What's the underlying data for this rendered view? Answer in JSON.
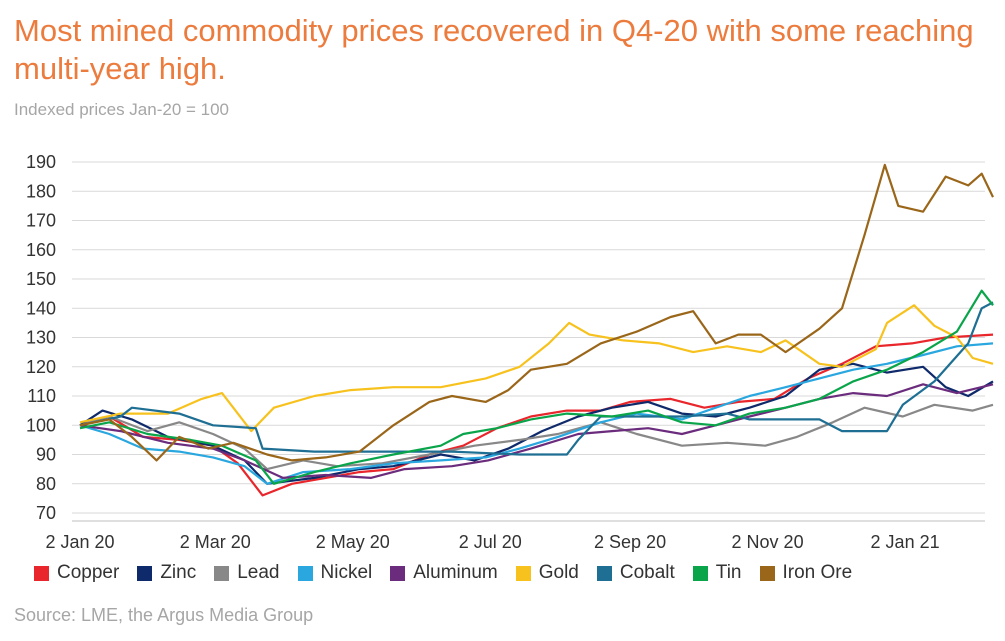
{
  "title": "Most mined commodity prices recovered in Q4-20 with some reaching multi-year high.",
  "subtitle": "Indexed prices Jan-20 = 100",
  "source": "Source: LME, the Argus Media Group",
  "chart_data": {
    "type": "line",
    "title": "Most mined commodity prices recovered in Q4-20 with some reaching multi-year high.",
    "subtitle": "Indexed prices Jan-20 = 100",
    "ylim": [
      70,
      190
    ],
    "yticks": [
      70,
      80,
      90,
      100,
      110,
      120,
      130,
      140,
      150,
      160,
      170,
      180,
      190
    ],
    "xlim": [
      "2020-01-02",
      "2021-02-10"
    ],
    "xticks": [
      "2020-01-02",
      "2020-03-02",
      "2020-05-02",
      "2020-07-02",
      "2020-09-02",
      "2020-11-02",
      "2021-01-02"
    ],
    "xtick_labels": [
      "2 Jan 20",
      "2 Mar 20",
      "2 May 20",
      "2 Jul 20",
      "2 Sep 20",
      "2 Nov 20",
      "2 Jan 21"
    ],
    "grid": "horizontal",
    "legend_position": "bottom",
    "series": [
      {
        "name": "Copper",
        "color": "#e8262b",
        "points": [
          [
            "2020-01-02",
            100
          ],
          [
            "2020-01-15",
            103
          ],
          [
            "2020-01-30",
            96
          ],
          [
            "2020-02-15",
            95
          ],
          [
            "2020-03-01",
            93
          ],
          [
            "2020-03-12",
            87
          ],
          [
            "2020-03-23",
            76
          ],
          [
            "2020-04-05",
            80
          ],
          [
            "2020-04-20",
            82
          ],
          [
            "2020-05-05",
            84
          ],
          [
            "2020-05-20",
            85
          ],
          [
            "2020-06-05",
            90
          ],
          [
            "2020-06-20",
            93
          ],
          [
            "2020-07-05",
            99
          ],
          [
            "2020-07-20",
            103
          ],
          [
            "2020-08-05",
            105
          ],
          [
            "2020-08-20",
            105
          ],
          [
            "2020-09-02",
            108
          ],
          [
            "2020-09-20",
            109
          ],
          [
            "2020-10-05",
            106
          ],
          [
            "2020-10-20",
            108
          ],
          [
            "2020-11-05",
            109
          ],
          [
            "2020-11-20",
            116
          ],
          [
            "2020-12-05",
            121
          ],
          [
            "2020-12-20",
            127
          ],
          [
            "2021-01-05",
            128
          ],
          [
            "2021-01-20",
            130
          ],
          [
            "2021-02-10",
            131
          ]
        ]
      },
      {
        "name": "Zinc",
        "color": "#0f2a6b",
        "points": [
          [
            "2020-01-02",
            100
          ],
          [
            "2020-01-12",
            105
          ],
          [
            "2020-01-25",
            102
          ],
          [
            "2020-02-10",
            96
          ],
          [
            "2020-03-01",
            93
          ],
          [
            "2020-03-15",
            88
          ],
          [
            "2020-03-25",
            80
          ],
          [
            "2020-04-15",
            82
          ],
          [
            "2020-05-05",
            85
          ],
          [
            "2020-05-20",
            86
          ],
          [
            "2020-06-10",
            90
          ],
          [
            "2020-06-25",
            88
          ],
          [
            "2020-07-10",
            92
          ],
          [
            "2020-07-25",
            98
          ],
          [
            "2020-08-10",
            103
          ],
          [
            "2020-08-25",
            106
          ],
          [
            "2020-09-10",
            108
          ],
          [
            "2020-09-25",
            104
          ],
          [
            "2020-10-10",
            103
          ],
          [
            "2020-10-25",
            106
          ],
          [
            "2020-11-10",
            110
          ],
          [
            "2020-11-25",
            119
          ],
          [
            "2020-12-10",
            121
          ],
          [
            "2020-12-25",
            118
          ],
          [
            "2021-01-10",
            120
          ],
          [
            "2021-01-20",
            113
          ],
          [
            "2021-01-30",
            110
          ],
          [
            "2021-02-10",
            115
          ]
        ]
      },
      {
        "name": "Lead",
        "color": "#888888",
        "points": [
          [
            "2020-01-02",
            100
          ],
          [
            "2020-01-15",
            103
          ],
          [
            "2020-02-01",
            98
          ],
          [
            "2020-02-15",
            101
          ],
          [
            "2020-03-01",
            97
          ],
          [
            "2020-03-15",
            92
          ],
          [
            "2020-03-25",
            85
          ],
          [
            "2020-04-10",
            88
          ],
          [
            "2020-04-25",
            86
          ],
          [
            "2020-05-15",
            87
          ],
          [
            "2020-06-05",
            90
          ],
          [
            "2020-06-25",
            93
          ],
          [
            "2020-07-15",
            95
          ],
          [
            "2020-08-01",
            97
          ],
          [
            "2020-08-20",
            101
          ],
          [
            "2020-09-05",
            97
          ],
          [
            "2020-09-25",
            93
          ],
          [
            "2020-10-15",
            94
          ],
          [
            "2020-11-01",
            93
          ],
          [
            "2020-11-15",
            96
          ],
          [
            "2020-12-01",
            101
          ],
          [
            "2020-12-15",
            106
          ],
          [
            "2021-01-01",
            103
          ],
          [
            "2021-01-15",
            107
          ],
          [
            "2021-02-01",
            105
          ],
          [
            "2021-02-10",
            107
          ]
        ]
      },
      {
        "name": "Nickel",
        "color": "#2aa7df",
        "points": [
          [
            "2020-01-02",
            100
          ],
          [
            "2020-01-15",
            97
          ],
          [
            "2020-01-30",
            92
          ],
          [
            "2020-02-15",
            91
          ],
          [
            "2020-03-01",
            89
          ],
          [
            "2020-03-15",
            86
          ],
          [
            "2020-03-25",
            80
          ],
          [
            "2020-04-10",
            84
          ],
          [
            "2020-05-01",
            85
          ],
          [
            "2020-05-20",
            87
          ],
          [
            "2020-06-10",
            88
          ],
          [
            "2020-06-30",
            89
          ],
          [
            "2020-07-15",
            92
          ],
          [
            "2020-08-01",
            96
          ],
          [
            "2020-08-20",
            101
          ],
          [
            "2020-09-05",
            104
          ],
          [
            "2020-09-25",
            102
          ],
          [
            "2020-10-10",
            106
          ],
          [
            "2020-10-25",
            110
          ],
          [
            "2020-11-10",
            113
          ],
          [
            "2020-11-25",
            116
          ],
          [
            "2020-12-10",
            119
          ],
          [
            "2020-12-25",
            121
          ],
          [
            "2021-01-10",
            124
          ],
          [
            "2021-01-25",
            127
          ],
          [
            "2021-02-10",
            128
          ]
        ]
      },
      {
        "name": "Aluminum",
        "color": "#6b2c7d",
        "points": [
          [
            "2020-01-02",
            100
          ],
          [
            "2020-01-20",
            98
          ],
          [
            "2020-02-10",
            94
          ],
          [
            "2020-03-01",
            92
          ],
          [
            "2020-03-15",
            88
          ],
          [
            "2020-04-01",
            82
          ],
          [
            "2020-04-20",
            83
          ],
          [
            "2020-05-10",
            82
          ],
          [
            "2020-05-25",
            85
          ],
          [
            "2020-06-15",
            86
          ],
          [
            "2020-07-01",
            88
          ],
          [
            "2020-07-20",
            92
          ],
          [
            "2020-08-10",
            97
          ],
          [
            "2020-08-25",
            98
          ],
          [
            "2020-09-10",
            99
          ],
          [
            "2020-09-25",
            97
          ],
          [
            "2020-10-10",
            100
          ],
          [
            "2020-10-25",
            103
          ],
          [
            "2020-11-10",
            106
          ],
          [
            "2020-11-25",
            109
          ],
          [
            "2020-12-10",
            111
          ],
          [
            "2020-12-25",
            110
          ],
          [
            "2021-01-10",
            114
          ],
          [
            "2021-01-25",
            111
          ],
          [
            "2021-02-10",
            114
          ]
        ]
      },
      {
        "name": "Gold",
        "color": "#f7c21e",
        "points": [
          [
            "2020-01-02",
            101
          ],
          [
            "2020-01-20",
            104
          ],
          [
            "2020-02-10",
            104
          ],
          [
            "2020-02-25",
            109
          ],
          [
            "2020-03-05",
            111
          ],
          [
            "2020-03-18",
            98
          ],
          [
            "2020-03-28",
            106
          ],
          [
            "2020-04-15",
            110
          ],
          [
            "2020-05-01",
            112
          ],
          [
            "2020-05-20",
            113
          ],
          [
            "2020-06-10",
            113
          ],
          [
            "2020-06-30",
            116
          ],
          [
            "2020-07-15",
            120
          ],
          [
            "2020-07-28",
            128
          ],
          [
            "2020-08-06",
            135
          ],
          [
            "2020-08-15",
            131
          ],
          [
            "2020-08-30",
            129
          ],
          [
            "2020-09-15",
            128
          ],
          [
            "2020-09-30",
            125
          ],
          [
            "2020-10-15",
            127
          ],
          [
            "2020-10-30",
            125
          ],
          [
            "2020-11-10",
            129
          ],
          [
            "2020-11-25",
            121
          ],
          [
            "2020-12-05",
            120
          ],
          [
            "2020-12-20",
            126
          ],
          [
            "2020-12-25",
            135
          ],
          [
            "2021-01-06",
            141
          ],
          [
            "2021-01-15",
            134
          ],
          [
            "2021-01-25",
            130
          ],
          [
            "2021-02-01",
            123
          ],
          [
            "2021-02-10",
            121
          ]
        ]
      },
      {
        "name": "Cobalt",
        "color": "#1e6f93",
        "points": [
          [
            "2020-01-02",
            100
          ],
          [
            "2020-01-20",
            103
          ],
          [
            "2020-01-25",
            106
          ],
          [
            "2020-02-15",
            104
          ],
          [
            "2020-03-01",
            100
          ],
          [
            "2020-03-20",
            99
          ],
          [
            "2020-03-23",
            92
          ],
          [
            "2020-04-15",
            91
          ],
          [
            "2020-05-15",
            91
          ],
          [
            "2020-06-15",
            91
          ],
          [
            "2020-07-15",
            90
          ],
          [
            "2020-08-05",
            90
          ],
          [
            "2020-08-10",
            95
          ],
          [
            "2020-08-20",
            103
          ],
          [
            "2020-09-10",
            103
          ],
          [
            "2020-09-25",
            103
          ],
          [
            "2020-10-15",
            104
          ],
          [
            "2020-10-25",
            102
          ],
          [
            "2020-11-25",
            102
          ],
          [
            "2020-12-05",
            98
          ],
          [
            "2020-12-25",
            98
          ],
          [
            "2021-01-01",
            107
          ],
          [
            "2021-01-15",
            115
          ],
          [
            "2021-01-30",
            128
          ],
          [
            "2021-02-05",
            140
          ],
          [
            "2021-02-10",
            142
          ]
        ]
      },
      {
        "name": "Tin",
        "color": "#0aa54a",
        "points": [
          [
            "2020-01-02",
            99
          ],
          [
            "2020-01-15",
            101
          ],
          [
            "2020-02-01",
            97
          ],
          [
            "2020-02-20",
            95
          ],
          [
            "2020-03-05",
            93
          ],
          [
            "2020-03-20",
            88
          ],
          [
            "2020-03-28",
            80
          ],
          [
            "2020-04-15",
            84
          ],
          [
            "2020-05-01",
            87
          ],
          [
            "2020-05-20",
            90
          ],
          [
            "2020-06-10",
            93
          ],
          [
            "2020-06-20",
            97
          ],
          [
            "2020-07-05",
            99
          ],
          [
            "2020-07-20",
            102
          ],
          [
            "2020-08-05",
            104
          ],
          [
            "2020-08-25",
            103
          ],
          [
            "2020-09-10",
            105
          ],
          [
            "2020-09-25",
            101
          ],
          [
            "2020-10-10",
            100
          ],
          [
            "2020-10-25",
            104
          ],
          [
            "2020-11-10",
            106
          ],
          [
            "2020-11-25",
            109
          ],
          [
            "2020-12-10",
            115
          ],
          [
            "2020-12-25",
            119
          ],
          [
            "2021-01-10",
            125
          ],
          [
            "2021-01-25",
            132
          ],
          [
            "2021-02-05",
            146
          ],
          [
            "2021-02-10",
            141
          ]
        ]
      },
      {
        "name": "Iron Ore",
        "color": "#9a6619",
        "points": [
          [
            "2020-01-02",
            100
          ],
          [
            "2020-01-15",
            102
          ],
          [
            "2020-01-25",
            96
          ],
          [
            "2020-02-05",
            88
          ],
          [
            "2020-02-15",
            96
          ],
          [
            "2020-02-28",
            92
          ],
          [
            "2020-03-10",
            94
          ],
          [
            "2020-03-25",
            90
          ],
          [
            "2020-04-05",
            88
          ],
          [
            "2020-04-20",
            89
          ],
          [
            "2020-05-05",
            91
          ],
          [
            "2020-05-20",
            100
          ],
          [
            "2020-06-05",
            108
          ],
          [
            "2020-06-15",
            110
          ],
          [
            "2020-06-30",
            108
          ],
          [
            "2020-07-10",
            112
          ],
          [
            "2020-07-20",
            119
          ],
          [
            "2020-08-05",
            121
          ],
          [
            "2020-08-20",
            128
          ],
          [
            "2020-09-05",
            132
          ],
          [
            "2020-09-20",
            137
          ],
          [
            "2020-09-30",
            139
          ],
          [
            "2020-10-10",
            128
          ],
          [
            "2020-10-20",
            131
          ],
          [
            "2020-10-30",
            131
          ],
          [
            "2020-11-10",
            125
          ],
          [
            "2020-11-25",
            133
          ],
          [
            "2020-12-05",
            140
          ],
          [
            "2020-12-15",
            165
          ],
          [
            "2020-12-24",
            189
          ],
          [
            "2020-12-30",
            175
          ],
          [
            "2021-01-10",
            173
          ],
          [
            "2021-01-20",
            185
          ],
          [
            "2021-01-30",
            182
          ],
          [
            "2021-02-05",
            186
          ],
          [
            "2021-02-10",
            178
          ]
        ]
      }
    ]
  }
}
